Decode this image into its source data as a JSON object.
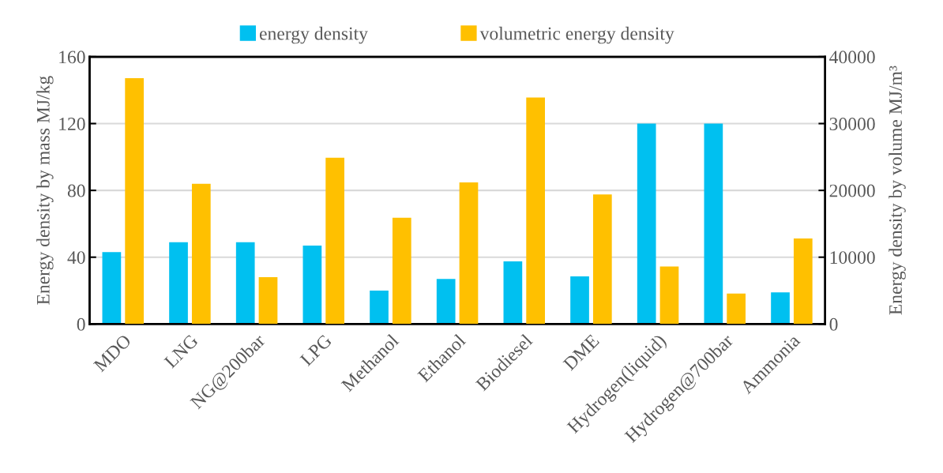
{
  "chart_data": {
    "type": "bar",
    "categories": [
      "MDO",
      "LNG",
      "NG@200bar",
      "LPG",
      "Methanol",
      "Ethanol",
      "Biodiesel",
      "DME",
      "Hydrogen(liquid)",
      "Hydrogen@700bar",
      "Ammonia"
    ],
    "series": [
      {
        "name": "energy density",
        "color": "#00c0f0",
        "values": [
          43,
          49,
          49,
          47,
          20,
          27,
          37.5,
          28.5,
          120,
          120,
          19
        ]
      },
      {
        "name": "volumetric energy density",
        "color": "#ffc000",
        "axis": "y2",
        "values": [
          36800,
          21000,
          7000,
          24900,
          15900,
          21200,
          33900,
          19400,
          8600,
          4550,
          12800
        ]
      }
    ],
    "ylabel": "Energy density by mass MJ/kg",
    "y2label": "Energy density by volume MJ/m³",
    "ylim": [
      0,
      160
    ],
    "yticks": [
      0,
      40,
      80,
      120,
      160
    ],
    "y2lim": [
      0,
      40000
    ],
    "y2ticks": [
      0,
      10000,
      20000,
      30000,
      40000
    ],
    "grid": "y",
    "legend": "top"
  }
}
